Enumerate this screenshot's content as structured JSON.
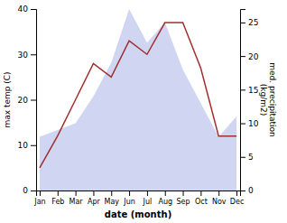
{
  "chart_data": {
    "type": "line",
    "xlabel": "date (month)",
    "ylabel": "max temp (C)",
    "y2label": "med. precipitation\n(kg/m2)",
    "categories": [
      "Jan",
      "Feb",
      "Mar",
      "Apr",
      "May",
      "Jun",
      "Jul",
      "Aug",
      "Sep",
      "Oct",
      "Nov",
      "Dec"
    ],
    "series": [
      {
        "type": "area",
        "axis": "y2",
        "color": "#c8cef0",
        "values": [
          8,
          9,
          10,
          14,
          19,
          27,
          22,
          25,
          18,
          13,
          8,
          11
        ]
      },
      {
        "type": "line",
        "color": "#a03030",
        "values": [
          5,
          12,
          20,
          28,
          25,
          33,
          30,
          37,
          37,
          27,
          12,
          12
        ]
      }
    ],
    "ylim": [
      0,
      40
    ],
    "yticks": [
      0,
      10,
      20,
      30,
      40
    ],
    "y2lim": [
      0,
      27
    ],
    "y2ticks": [
      0,
      5,
      10,
      15,
      20,
      25
    ]
  }
}
